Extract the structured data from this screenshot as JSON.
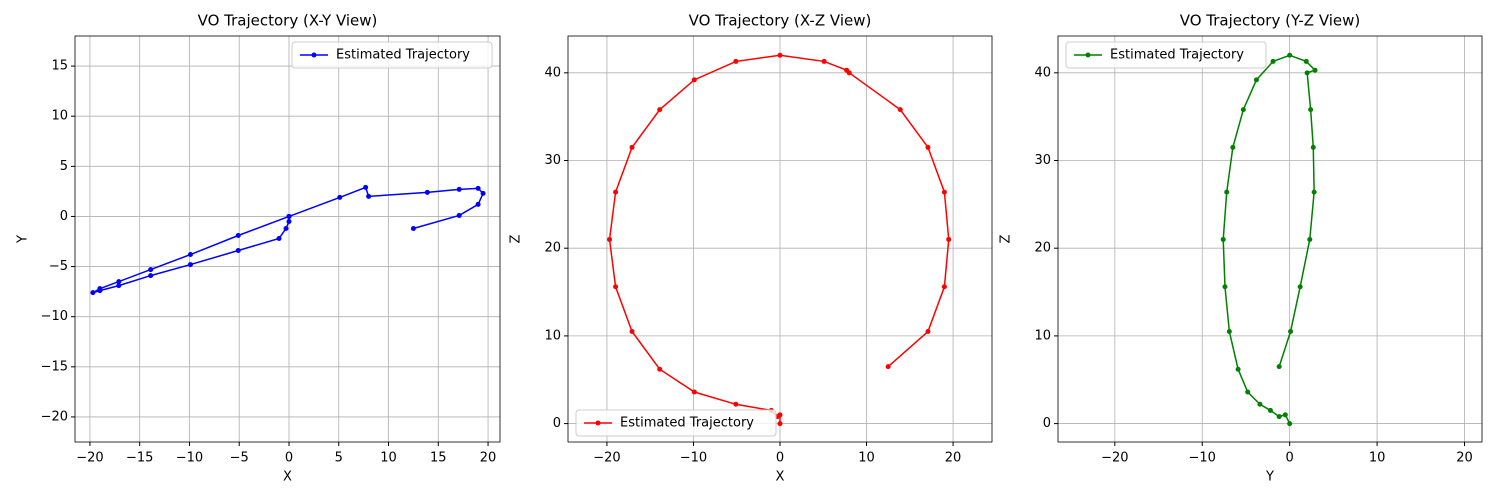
{
  "chart_data": [
    {
      "type": "line",
      "title": "VO Trajectory (X-Y View)",
      "x_label": "X",
      "y_label": "Y",
      "x": [
        0,
        0,
        -0.3,
        -1,
        -5.1,
        -9.9,
        -13.9,
        -17.1,
        -19.0,
        -19.7,
        -19.0,
        -17.1,
        -13.9,
        -9.9,
        -5.1,
        0,
        5.1,
        7.7,
        8.0,
        13.9,
        17.1,
        19.0,
        19.5,
        19.0,
        17.1,
        12.5
      ],
      "series": [
        {
          "name": "Estimated Trajectory",
          "color": "#0000ff",
          "values": [
            0,
            -0.5,
            -1.2,
            -2.2,
            -3.4,
            -4.8,
            -5.9,
            -6.9,
            -7.4,
            -7.6,
            -7.2,
            -6.5,
            -5.3,
            -3.8,
            -1.9,
            0,
            1.9,
            2.9,
            2.0,
            2.4,
            2.7,
            2.8,
            2.3,
            1.2,
            0.1,
            -1.2
          ]
        }
      ],
      "xlim": [
        -21.5,
        21.2
      ],
      "ylim": [
        -22.5,
        18
      ],
      "xticks": [
        {
          "value": -20,
          "label": "−20"
        },
        {
          "value": -15,
          "label": "−15"
        },
        {
          "value": -10,
          "label": "−10"
        },
        {
          "value": -5,
          "label": "−5"
        },
        0,
        5,
        10,
        15,
        20
      ],
      "yticks": [
        {
          "value": -20,
          "label": "−20"
        },
        {
          "value": -15,
          "label": "−15"
        },
        {
          "value": -10,
          "label": "−10"
        },
        {
          "value": -5,
          "label": "−5"
        },
        0,
        5,
        10,
        15
      ],
      "grid": true,
      "legend": "upper right"
    },
    {
      "type": "line",
      "title": "VO Trajectory (X-Z View)",
      "x_label": "X",
      "y_label": "Z",
      "x": [
        0,
        0,
        -0.3,
        -1,
        -5.1,
        -9.9,
        -13.9,
        -17.1,
        -19.0,
        -19.7,
        -19.0,
        -17.1,
        -13.9,
        -9.9,
        -5.1,
        0,
        5.1,
        7.7,
        8.0,
        13.9,
        17.1,
        19.0,
        19.5,
        19.0,
        17.1,
        12.5
      ],
      "series": [
        {
          "name": "Estimated Trajectory",
          "color": "#ff0000",
          "values": [
            0,
            1.0,
            0.8,
            1.5,
            2.2,
            3.6,
            6.2,
            10.5,
            15.6,
            21.0,
            26.4,
            31.5,
            35.8,
            39.2,
            41.3,
            42,
            41.3,
            40.3,
            40.0,
            35.8,
            31.5,
            26.4,
            21.0,
            15.6,
            10.5,
            6.5
          ]
        }
      ],
      "xlim": [
        -24.5,
        24.5
      ],
      "ylim": [
        -2.1,
        44.2
      ],
      "xticks": [
        {
          "value": -20,
          "label": "−20"
        },
        {
          "value": -10,
          "label": "−10"
        },
        0,
        10,
        20
      ],
      "yticks": [
        0,
        10,
        20,
        30,
        40
      ],
      "grid": true,
      "legend": "lower left"
    },
    {
      "type": "line",
      "title": "VO Trajectory (Y-Z View)",
      "x_label": "Y",
      "y_label": "Z",
      "x": [
        0,
        -0.5,
        -1.2,
        -2.2,
        -3.4,
        -4.8,
        -5.9,
        -6.9,
        -7.4,
        -7.6,
        -7.2,
        -6.5,
        -5.3,
        -3.8,
        -1.9,
        0,
        1.9,
        2.9,
        2.0,
        2.4,
        2.7,
        2.8,
        2.3,
        1.2,
        0.1,
        -1.2
      ],
      "series": [
        {
          "name": "Estimated Trajectory",
          "color": "#008000",
          "values": [
            0,
            1.0,
            0.8,
            1.5,
            2.2,
            3.6,
            6.2,
            10.5,
            15.6,
            21.0,
            26.4,
            31.5,
            35.8,
            39.2,
            41.3,
            42,
            41.3,
            40.3,
            40.0,
            35.8,
            31.5,
            26.4,
            21.0,
            15.6,
            10.5,
            6.5
          ]
        }
      ],
      "xlim": [
        -26.5,
        22
      ],
      "ylim": [
        -2.1,
        44.2
      ],
      "xticks": [
        {
          "value": -20,
          "label": "−20"
        },
        {
          "value": -10,
          "label": "−10"
        },
        0,
        10,
        20
      ],
      "yticks": [
        0,
        10,
        20,
        30,
        40
      ],
      "grid": true,
      "legend": "upper left"
    }
  ]
}
